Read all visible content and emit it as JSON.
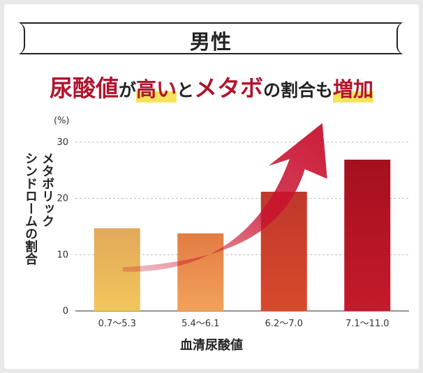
{
  "header": {
    "gender": "男性"
  },
  "headline": {
    "parts": [
      {
        "text": "尿酸値",
        "style": "red"
      },
      {
        "text": "が",
        "style": "dark"
      },
      {
        "text": "高い",
        "style": "hl"
      },
      {
        "text": "と",
        "style": "dark"
      },
      {
        "text": "メタボ",
        "style": "red"
      },
      {
        "text": "の割合も",
        "style": "dark"
      },
      {
        "text": "増加",
        "style": "hl"
      }
    ]
  },
  "chart_data": {
    "type": "bar",
    "ylabel_lines": [
      "メタボリック",
      "シンドロームの割合"
    ],
    "yunit": "(%)",
    "xlabel": "血清尿酸値",
    "ylim": [
      0,
      30
    ],
    "yticks": [
      0,
      10,
      20,
      30
    ],
    "grid": true,
    "categories": [
      "0.7〜5.3",
      "5.4〜6.1",
      "6.2〜7.0",
      "7.1〜11.0"
    ],
    "values": [
      14.7,
      13.8,
      21.2,
      26.9
    ],
    "bar_colors": [
      [
        "#f1c65a",
        "#e2a85a"
      ],
      [
        "#f2a25a",
        "#e27c44"
      ],
      [
        "#d84a2c",
        "#c0382c"
      ],
      [
        "#c41a2c",
        "#a5101e"
      ]
    ],
    "annotation": "rising trend arrow"
  }
}
